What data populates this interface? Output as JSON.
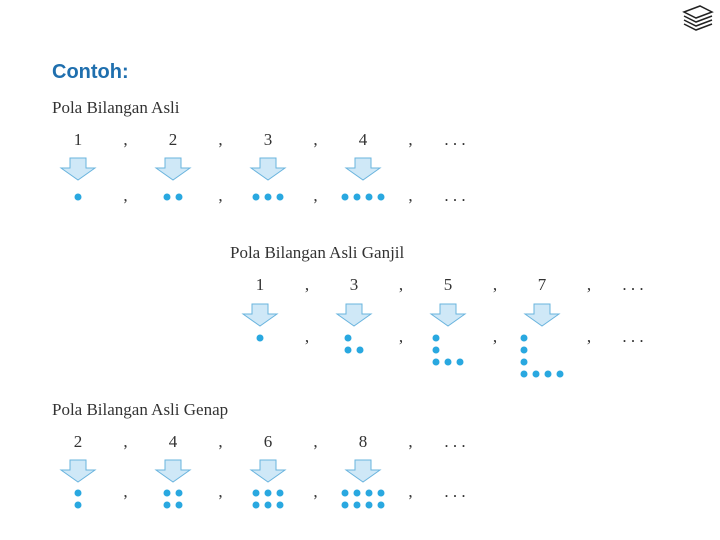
{
  "heading": "Contoh:",
  "patterns": [
    {
      "title": "Pola Bilangan Asli",
      "numbers": [
        1,
        2,
        3,
        4
      ],
      "separator": ",",
      "ellipsis": ". . ."
    },
    {
      "title": "Pola Bilangan Asli Ganjil",
      "numbers": [
        1,
        3,
        5,
        7
      ],
      "separator": ",",
      "ellipsis": ". . ."
    },
    {
      "title": "Pola Bilangan Asli Genap",
      "numbers": [
        2,
        4,
        6,
        8
      ],
      "separator": ",",
      "ellipsis": ". . ."
    }
  ]
}
